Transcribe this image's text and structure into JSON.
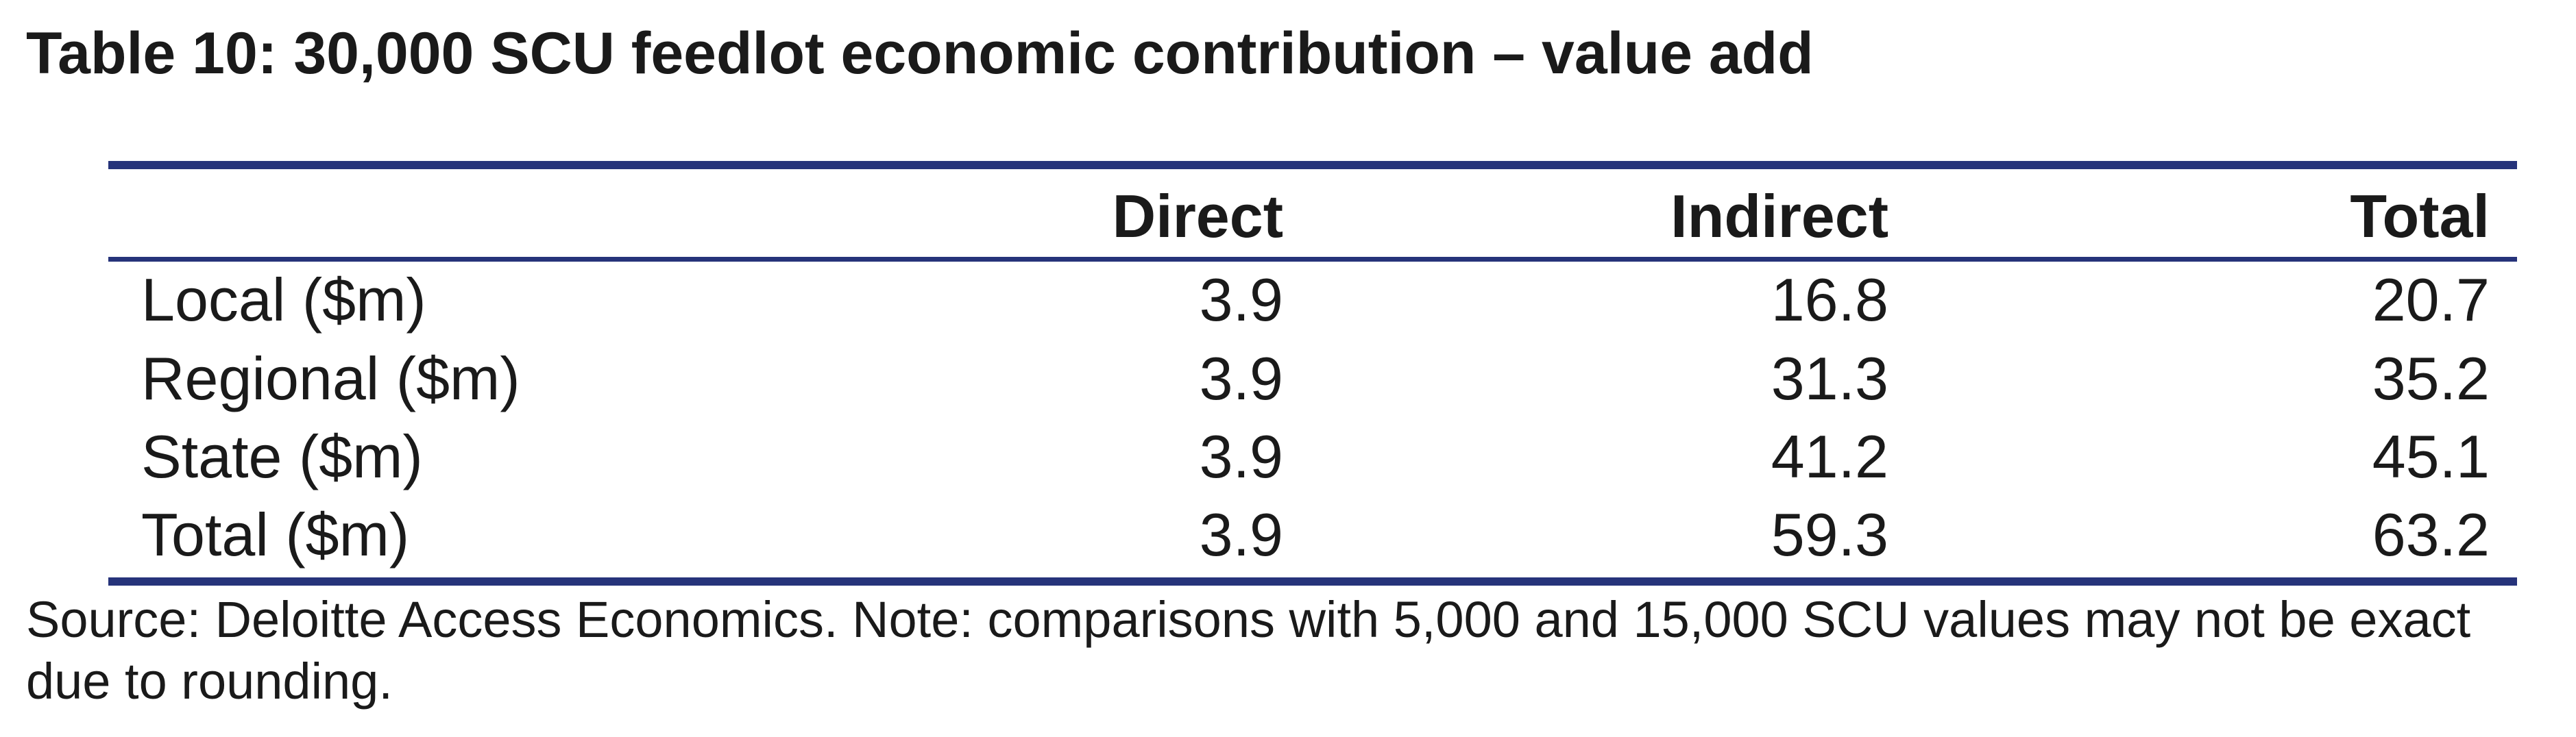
{
  "title": "Table 10: 30,000 SCU feedlot economic contribution – value add",
  "table": {
    "headers": [
      "",
      "Direct",
      "Indirect",
      "Total"
    ],
    "rows": [
      {
        "label": "Local ($m)",
        "direct": "3.9",
        "indirect": "16.8",
        "total": "20.7"
      },
      {
        "label": "Regional ($m)",
        "direct": "3.9",
        "indirect": "31.3",
        "total": "35.2"
      },
      {
        "label": "State ($m)",
        "direct": "3.9",
        "indirect": "41.2",
        "total": "45.1"
      },
      {
        "label": "Total ($m)",
        "direct": "3.9",
        "indirect": "59.3",
        "total": "63.2"
      }
    ]
  },
  "note": "Source: Deloitte Access Economics. Note: comparisons with 5,000 and 15,000 SCU values may not be exact due to rounding.",
  "colors": {
    "rule": "#26337a",
    "text": "#1a1a1a"
  }
}
